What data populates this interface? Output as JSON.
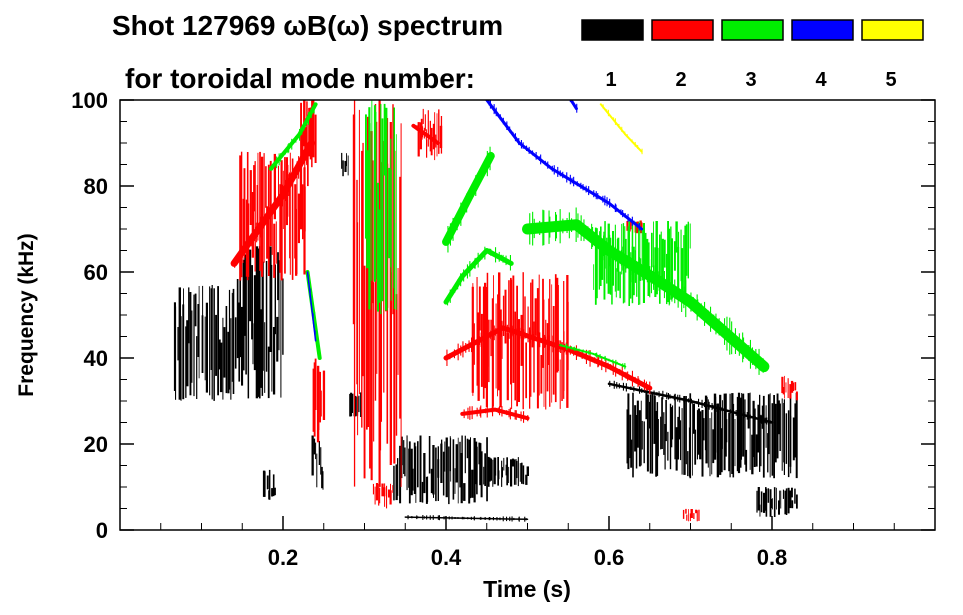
{
  "chart_data": {
    "type": "heatmap",
    "title_line1": "Shot 127969 ωB(ω) spectrum",
    "title_line2": "for toroidal mode number:",
    "xlabel": "Time (s)",
    "ylabel": "Frequency (kHz)",
    "xlim": [
      0.0,
      1.0
    ],
    "ylim": [
      0,
      100
    ],
    "xticks": [
      0.2,
      0.4,
      0.6,
      0.8
    ],
    "xtick_labels": [
      "0.2",
      "0.4",
      "0.6",
      "0.8"
    ],
    "yticks": [
      0,
      20,
      40,
      60,
      80,
      100
    ],
    "ytick_labels": [
      "0",
      "20",
      "40",
      "60",
      "80",
      "100"
    ],
    "legend": [
      {
        "label": "1",
        "color": "#000000"
      },
      {
        "label": "2",
        "color": "#ff0000"
      },
      {
        "label": "3",
        "color": "#00ee00"
      },
      {
        "label": "4",
        "color": "#0000ff"
      },
      {
        "label": "5",
        "color": "#ffff00"
      }
    ],
    "features": [
      {
        "mode": "1",
        "kind": "blob",
        "t0": 0.065,
        "t1": 0.14,
        "f0": 30,
        "f1": 57
      },
      {
        "mode": "1",
        "kind": "blob",
        "t0": 0.14,
        "t1": 0.2,
        "f0": 30,
        "f1": 66
      },
      {
        "mode": "1",
        "kind": "blob",
        "t0": 0.27,
        "t1": 0.28,
        "f0": 82,
        "f1": 88
      },
      {
        "mode": "1",
        "kind": "blob",
        "t0": 0.235,
        "t1": 0.25,
        "f0": 8,
        "f1": 22
      },
      {
        "mode": "1",
        "kind": "blob",
        "t0": 0.335,
        "t1": 0.45,
        "f0": 6,
        "f1": 22
      },
      {
        "mode": "1",
        "kind": "blob",
        "t0": 0.45,
        "t1": 0.5,
        "f0": 10,
        "f1": 17
      },
      {
        "mode": "1",
        "kind": "line",
        "pts": [
          [
            0.35,
            3
          ],
          [
            0.5,
            2.5
          ]
        ],
        "width": 1.5
      },
      {
        "mode": "1",
        "kind": "line",
        "pts": [
          [
            0.6,
            34
          ],
          [
            0.7,
            30
          ],
          [
            0.8,
            25
          ]
        ],
        "width": 2.5
      },
      {
        "mode": "1",
        "kind": "blob",
        "t0": 0.62,
        "t1": 0.83,
        "f0": 12,
        "f1": 32
      },
      {
        "mode": "1",
        "kind": "blob",
        "t0": 0.78,
        "t1": 0.83,
        "f0": 3,
        "f1": 10
      },
      {
        "mode": "1",
        "kind": "blob",
        "t0": 0.175,
        "t1": 0.19,
        "f0": 7,
        "f1": 14
      },
      {
        "mode": "1",
        "kind": "blob",
        "t0": 0.28,
        "t1": 0.295,
        "f0": 26,
        "f1": 32
      },
      {
        "mode": "2",
        "kind": "line",
        "pts": [
          [
            0.14,
            62
          ],
          [
            0.2,
            78
          ],
          [
            0.235,
            90
          ]
        ],
        "width": 7
      },
      {
        "mode": "2",
        "kind": "blob",
        "t0": 0.145,
        "t1": 0.23,
        "f0": 58,
        "f1": 88
      },
      {
        "mode": "2",
        "kind": "blob",
        "t0": 0.22,
        "t1": 0.24,
        "f0": 84,
        "f1": 100
      },
      {
        "mode": "2",
        "kind": "blob",
        "t0": 0.235,
        "t1": 0.25,
        "f0": 20,
        "f1": 40
      },
      {
        "mode": "2",
        "kind": "blob",
        "t0": 0.365,
        "t1": 0.395,
        "f0": 86,
        "f1": 98
      },
      {
        "mode": "2",
        "kind": "line",
        "pts": [
          [
            0.36,
            94
          ],
          [
            0.39,
            90
          ]
        ],
        "width": 4
      },
      {
        "mode": "2",
        "kind": "blob",
        "t0": 0.43,
        "t1": 0.55,
        "f0": 28,
        "f1": 60
      },
      {
        "mode": "2",
        "kind": "line",
        "pts": [
          [
            0.4,
            40
          ],
          [
            0.47,
            47
          ],
          [
            0.55,
            42
          ],
          [
            0.6,
            38
          ],
          [
            0.65,
            33
          ]
        ],
        "width": 5
      },
      {
        "mode": "2",
        "kind": "line",
        "pts": [
          [
            0.42,
            27
          ],
          [
            0.46,
            28
          ],
          [
            0.5,
            26
          ]
        ],
        "width": 4
      },
      {
        "mode": "2",
        "kind": "blob",
        "t0": 0.31,
        "t1": 0.335,
        "f0": 5,
        "f1": 11
      },
      {
        "mode": "2",
        "kind": "blob",
        "t0": 0.285,
        "t1": 0.345,
        "f0": 10,
        "f1": 100
      },
      {
        "mode": "2",
        "kind": "blob",
        "t0": 0.62,
        "t1": 0.64,
        "f0": 69,
        "f1": 72
      },
      {
        "mode": "2",
        "kind": "blob",
        "t0": 0.69,
        "t1": 0.71,
        "f0": 2,
        "f1": 5
      },
      {
        "mode": "2",
        "kind": "blob",
        "t0": 0.81,
        "t1": 0.83,
        "f0": 30,
        "f1": 36
      },
      {
        "mode": "3",
        "kind": "line",
        "pts": [
          [
            0.185,
            84
          ],
          [
            0.22,
            92
          ],
          [
            0.24,
            99
          ]
        ],
        "width": 4
      },
      {
        "mode": "3",
        "kind": "line",
        "pts": [
          [
            0.23,
            60
          ],
          [
            0.245,
            40
          ]
        ],
        "width": 4
      },
      {
        "mode": "3",
        "kind": "line",
        "pts": [
          [
            0.4,
            67
          ],
          [
            0.43,
            78
          ],
          [
            0.455,
            87
          ]
        ],
        "width": 8
      },
      {
        "mode": "3",
        "kind": "line",
        "pts": [
          [
            0.4,
            53
          ],
          [
            0.42,
            59
          ],
          [
            0.45,
            65
          ],
          [
            0.48,
            62
          ]
        ],
        "width": 5
      },
      {
        "mode": "3",
        "kind": "line",
        "pts": [
          [
            0.5,
            70
          ],
          [
            0.56,
            71
          ],
          [
            0.6,
            65
          ],
          [
            0.66,
            58
          ],
          [
            0.7,
            53
          ],
          [
            0.76,
            43
          ],
          [
            0.79,
            38
          ]
        ],
        "width": 11
      },
      {
        "mode": "3",
        "kind": "line",
        "pts": [
          [
            0.54,
            43
          ],
          [
            0.58,
            41
          ],
          [
            0.62,
            38
          ]
        ],
        "width": 2
      },
      {
        "mode": "3",
        "kind": "blob",
        "t0": 0.3,
        "t1": 0.34,
        "f0": 50,
        "f1": 100
      },
      {
        "mode": "3",
        "kind": "blob",
        "t0": 0.58,
        "t1": 0.7,
        "f0": 52,
        "f1": 72
      },
      {
        "mode": "4",
        "kind": "line",
        "pts": [
          [
            0.45,
            100
          ],
          [
            0.49,
            90
          ],
          [
            0.53,
            84
          ],
          [
            0.6,
            76
          ],
          [
            0.64,
            70
          ]
        ],
        "width": 3
      },
      {
        "mode": "4",
        "kind": "line",
        "pts": [
          [
            0.23,
            60
          ],
          [
            0.24,
            44
          ]
        ],
        "width": 1.5
      },
      {
        "mode": "4",
        "kind": "line",
        "pts": [
          [
            0.55,
            101
          ],
          [
            0.56,
            98
          ]
        ],
        "width": 3
      },
      {
        "mode": "5",
        "kind": "line",
        "pts": [
          [
            0.59,
            99
          ],
          [
            0.62,
            92
          ],
          [
            0.64,
            88
          ]
        ],
        "width": 2
      }
    ]
  }
}
